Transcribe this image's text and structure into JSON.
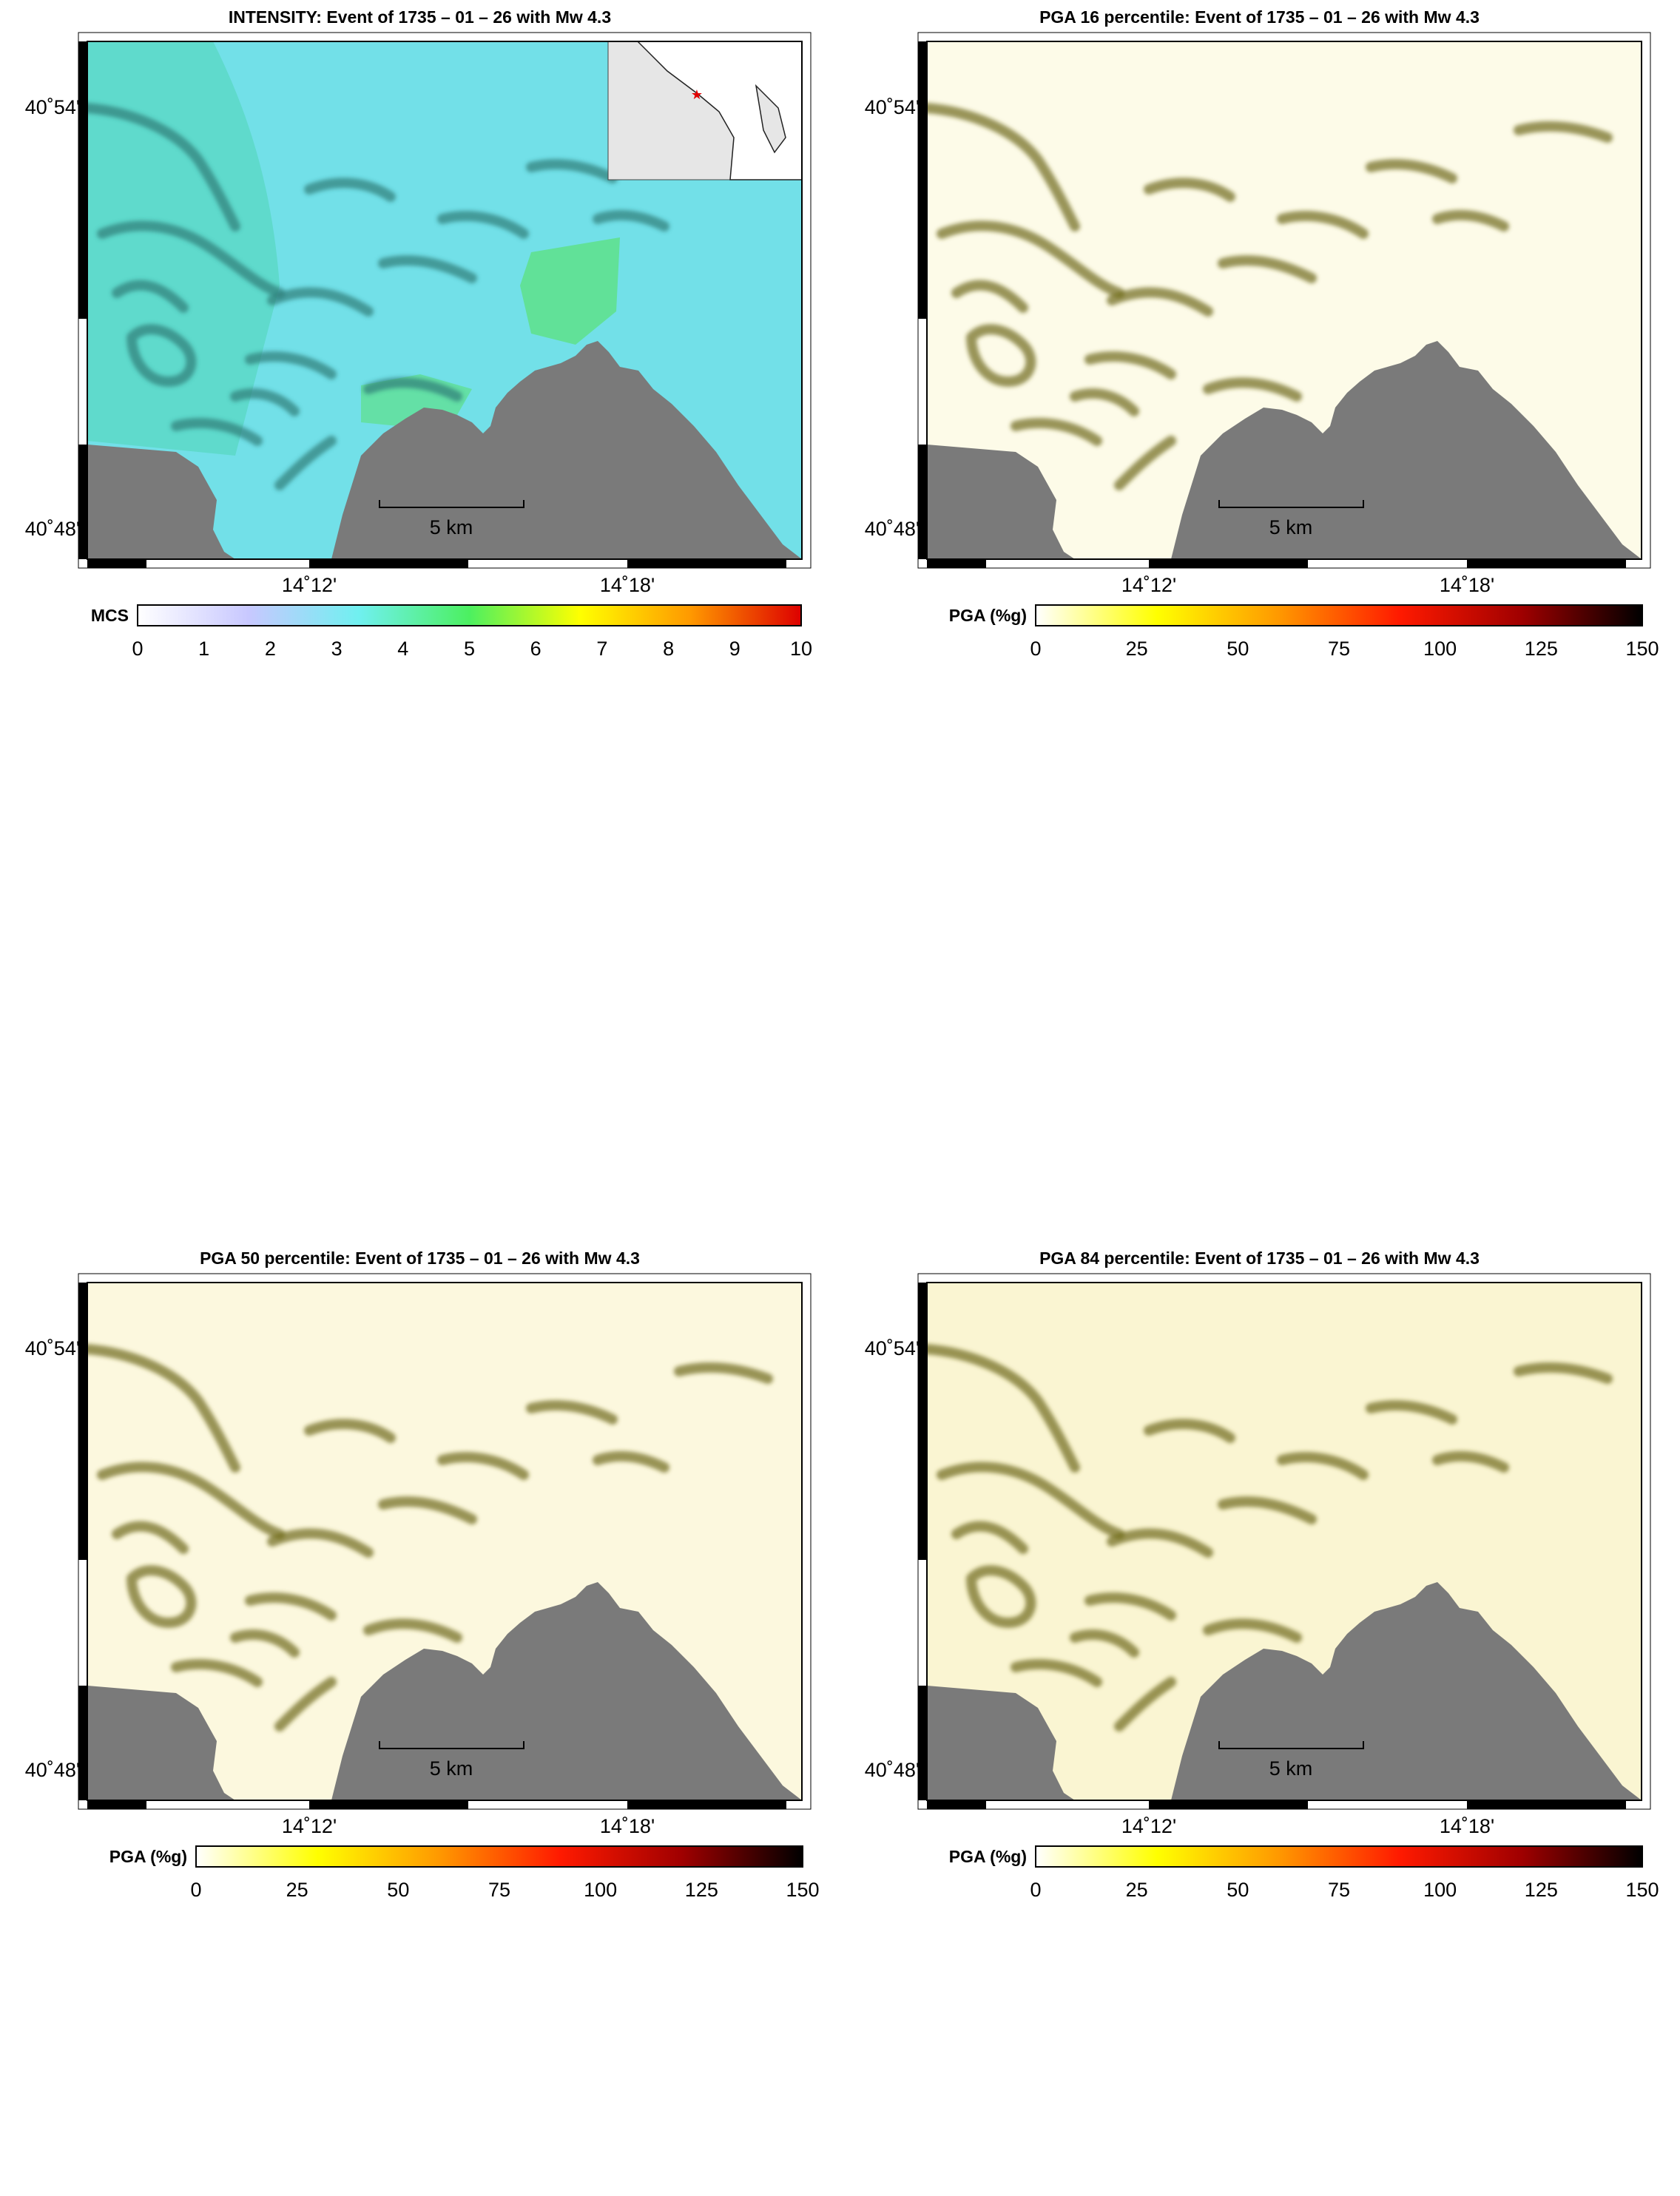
{
  "panels": [
    {
      "id": "intensity",
      "title": "INTENSITY: Event of 1735 – 01 – 26 with Mw 4.3",
      "lat_labels": [
        "40˚54'",
        "40˚48'"
      ],
      "lon_labels": [
        "14˚12'",
        "14˚18'"
      ],
      "scale_bar": "5 km",
      "colorbar": {
        "name": "MCS",
        "ticks": [
          "0",
          "1",
          "2",
          "3",
          "4",
          "5",
          "6",
          "7",
          "8",
          "9",
          "10"
        ],
        "colors": [
          "#ffffff",
          "#c8c8ff",
          "#70f0f0",
          "#4cf060",
          "#ffff00",
          "#ff9900",
          "#dd0000"
        ]
      },
      "land_color": "#72e0e8",
      "sea_color": "#7a7a7a",
      "inset": true
    },
    {
      "id": "pga16",
      "title": "PGA 16 percentile: Event of 1735 – 01 – 26 with Mw 4.3",
      "lat_labels": [
        "40˚54'",
        "40˚48'"
      ],
      "lon_labels": [
        "14˚12'",
        "14˚18'"
      ],
      "scale_bar": "5 km",
      "colorbar": {
        "name": "PGA (%g)",
        "ticks": [
          "0",
          "25",
          "50",
          "75",
          "100",
          "125",
          "150"
        ],
        "colors": [
          "#ffffff",
          "#ffff00",
          "#ff9900",
          "#ff1a00",
          "#a00000",
          "#000000"
        ]
      },
      "land_color": "#fdfbe8",
      "sea_color": "#7a7a7a",
      "inset": false
    },
    {
      "id": "pga50",
      "title": "PGA 50 percentile: Event of 1735 – 01 – 26 with Mw 4.3",
      "lat_labels": [
        "40˚54'",
        "40˚48'"
      ],
      "lon_labels": [
        "14˚12'",
        "14˚18'"
      ],
      "scale_bar": "5 km",
      "colorbar": {
        "name": "PGA (%g)",
        "ticks": [
          "0",
          "25",
          "50",
          "75",
          "100",
          "125",
          "150"
        ],
        "colors": [
          "#ffffff",
          "#ffff00",
          "#ff9900",
          "#ff1a00",
          "#a00000",
          "#000000"
        ]
      },
      "land_color": "#fcf8de",
      "sea_color": "#7a7a7a",
      "inset": false
    },
    {
      "id": "pga84",
      "title": "PGA 84 percentile: Event of 1735 – 01 – 26 with Mw 4.3",
      "lat_labels": [
        "40˚54'",
        "40˚48'"
      ],
      "lon_labels": [
        "14˚12'",
        "14˚18'"
      ],
      "scale_bar": "5 km",
      "colorbar": {
        "name": "PGA (%g)",
        "ticks": [
          "0",
          "25",
          "50",
          "75",
          "100",
          "125",
          "150"
        ],
        "colors": [
          "#ffffff",
          "#ffff00",
          "#ff9900",
          "#ff1a00",
          "#a00000",
          "#000000"
        ]
      },
      "land_color": "#faf5d2",
      "sea_color": "#7a7a7a",
      "inset": false
    }
  ]
}
